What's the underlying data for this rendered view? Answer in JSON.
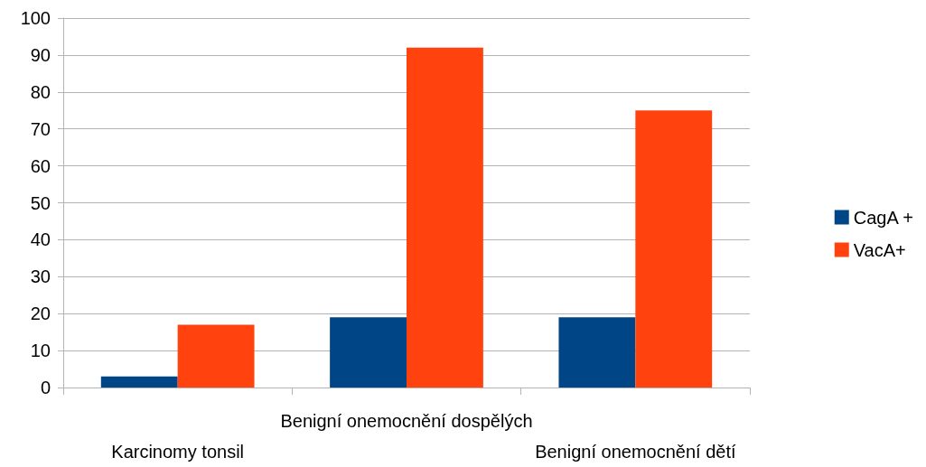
{
  "chart_data": {
    "type": "bar",
    "categories": [
      "Karcinomy tonsil",
      "Benigní onemocnění dospělých",
      "Benigní onemocnění dětí"
    ],
    "series": [
      {
        "name": "CagA +",
        "color": "#004586",
        "values": [
          3,
          19,
          19
        ]
      },
      {
        "name": "VacA+",
        "color": "#ff420e",
        "values": [
          17,
          92,
          75
        ]
      }
    ],
    "ylim": [
      0,
      100
    ],
    "yticks": [
      0,
      10,
      20,
      30,
      40,
      50,
      60,
      70,
      80,
      90,
      100
    ],
    "grid": "y",
    "legend": "right"
  }
}
